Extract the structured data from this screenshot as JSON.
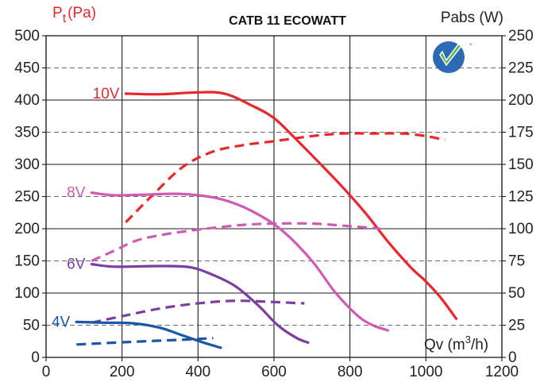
{
  "chart_data": {
    "type": "line",
    "title": "CATB 11 ECOWATT",
    "ylabel_left": {
      "main": "P",
      "sub": "t",
      "unit": "(Pa)"
    },
    "ylabel_right": "Pabs (W)",
    "xlabel": {
      "pre": "Qv (m",
      "sup": "3",
      "post": "/h)"
    },
    "xlim": [
      0,
      1200
    ],
    "ylim_left": [
      0,
      500
    ],
    "ylim_right": [
      0,
      250
    ],
    "x_ticks": [
      "0",
      "200",
      "400",
      "600",
      "800",
      "1000",
      "1200"
    ],
    "y_ticks_left": [
      "0",
      "50",
      "100",
      "150",
      "200",
      "250",
      "300",
      "350",
      "400",
      "450",
      "500"
    ],
    "y_ticks_right": [
      "0",
      "25",
      "50",
      "75",
      "100",
      "125",
      "150",
      "175",
      "200",
      "225",
      "250"
    ],
    "grid": true,
    "series": [
      {
        "name": "10V",
        "color": "#e8282d",
        "pressure": [
          [
            210,
            410
          ],
          [
            300,
            409
          ],
          [
            400,
            412
          ],
          [
            470,
            410
          ],
          [
            540,
            392
          ],
          [
            600,
            372
          ],
          [
            660,
            338
          ],
          [
            720,
            302
          ],
          [
            780,
            265
          ],
          [
            840,
            225
          ],
          [
            900,
            180
          ],
          [
            960,
            140
          ],
          [
            1000,
            118
          ],
          [
            1040,
            92
          ],
          [
            1080,
            60
          ]
        ],
        "power": [
          [
            210,
            105
          ],
          [
            280,
            126
          ],
          [
            360,
            148
          ],
          [
            440,
            160
          ],
          [
            520,
            165
          ],
          [
            600,
            168
          ],
          [
            700,
            172
          ],
          [
            780,
            174
          ],
          [
            860,
            174
          ],
          [
            940,
            174
          ],
          [
            1000,
            172
          ],
          [
            1050,
            169
          ]
        ]
      },
      {
        "name": "8V",
        "color": "#cf5ab4",
        "pressure": [
          [
            120,
            256
          ],
          [
            180,
            252
          ],
          [
            260,
            253
          ],
          [
            360,
            254
          ],
          [
            460,
            246
          ],
          [
            540,
            228
          ],
          [
            620,
            198
          ],
          [
            700,
            150
          ],
          [
            760,
            102
          ],
          [
            820,
            65
          ],
          [
            860,
            50
          ],
          [
            900,
            42
          ]
        ],
        "power": [
          [
            120,
            75
          ],
          [
            180,
            83
          ],
          [
            240,
            91
          ],
          [
            320,
            96
          ],
          [
            420,
            100
          ],
          [
            520,
            103
          ],
          [
            600,
            104
          ],
          [
            700,
            104
          ],
          [
            800,
            102
          ],
          [
            880,
            100
          ]
        ]
      },
      {
        "name": "6V",
        "color": "#7b3da1",
        "pressure": [
          [
            120,
            145
          ],
          [
            180,
            141
          ],
          [
            300,
            142
          ],
          [
            380,
            140
          ],
          [
            440,
            128
          ],
          [
            500,
            110
          ],
          [
            560,
            80
          ],
          [
            610,
            50
          ],
          [
            660,
            30
          ],
          [
            690,
            23
          ]
        ],
        "power": [
          [
            120,
            27
          ],
          [
            200,
            32
          ],
          [
            300,
            38
          ],
          [
            400,
            42
          ],
          [
            500,
            44
          ],
          [
            600,
            43
          ],
          [
            680,
            42
          ]
        ]
      },
      {
        "name": "4V",
        "color": "#1a56a8",
        "pressure": [
          [
            80,
            55
          ],
          [
            150,
            54
          ],
          [
            230,
            53
          ],
          [
            300,
            46
          ],
          [
            360,
            34
          ],
          [
            420,
            22
          ],
          [
            460,
            15
          ]
        ],
        "power": [
          [
            80,
            10
          ],
          [
            150,
            11
          ],
          [
            220,
            12
          ],
          [
            300,
            13
          ],
          [
            380,
            14
          ],
          [
            440,
            15
          ]
        ]
      }
    ],
    "line_styles": {
      "pressure": "solid",
      "power": "dashed"
    }
  }
}
